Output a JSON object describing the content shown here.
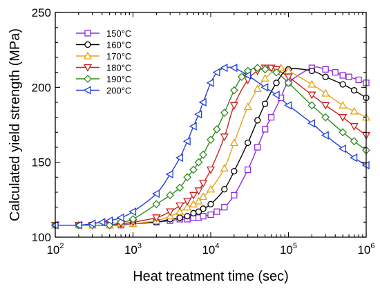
{
  "chart_data": {
    "type": "line",
    "title": "",
    "xlabel": "Heat treatment time (sec)",
    "ylabel": "Calculated yield strength (MPa)",
    "x_scale": "log",
    "xlim": [
      100,
      1000000
    ],
    "ylim": [
      100,
      250
    ],
    "x_ticks": [
      {
        "base": "10",
        "exp": "2",
        "value": 100
      },
      {
        "base": "10",
        "exp": "3",
        "value": 1000
      },
      {
        "base": "10",
        "exp": "4",
        "value": 10000
      },
      {
        "base": "10",
        "exp": "5",
        "value": 100000
      },
      {
        "base": "10",
        "exp": "6",
        "value": 1000000
      }
    ],
    "y_ticks": [
      {
        "label": "100",
        "value": 100
      },
      {
        "label": "150",
        "value": 150
      },
      {
        "label": "200",
        "value": 200
      },
      {
        "label": "250",
        "value": 250
      }
    ],
    "grid": false,
    "legend_position": "top-left",
    "series": [
      {
        "name": "150°C",
        "color": "#8f2be2",
        "marker": "square",
        "x": [
          100,
          200,
          300,
          500,
          700,
          1000,
          2000,
          3000,
          4000,
          5000,
          6000,
          7000,
          8000,
          10000,
          12000,
          15000,
          20000,
          30000,
          40000,
          50000,
          60000,
          80000,
          100000,
          200000,
          300000,
          400000,
          500000,
          600000,
          800000,
          1000000
        ],
        "y": [
          108,
          108,
          108,
          108,
          108,
          109,
          110,
          111,
          112,
          112,
          113,
          113,
          114,
          115,
          117,
          120,
          128,
          145,
          160,
          172,
          180,
          193,
          203,
          213,
          212,
          210,
          208,
          207,
          205,
          203
        ]
      },
      {
        "name": "160°C",
        "color": "#000000",
        "marker": "circle",
        "x": [
          100,
          200,
          300,
          500,
          700,
          1000,
          2000,
          3000,
          4000,
          5000,
          6000,
          7000,
          8000,
          10000,
          15000,
          20000,
          30000,
          40000,
          50000,
          70000,
          100000,
          200000,
          300000,
          500000,
          700000,
          1000000
        ],
        "y": [
          108,
          108,
          108,
          108,
          109,
          109,
          110,
          112,
          113,
          114,
          116,
          117,
          119,
          122,
          132,
          144,
          163,
          178,
          189,
          203,
          212,
          211,
          207,
          202,
          198,
          193
        ]
      },
      {
        "name": "170°C",
        "color": "#e3a317",
        "marker": "triangle-up",
        "x": [
          100,
          200,
          300,
          500,
          700,
          1000,
          2000,
          3000,
          4000,
          5000,
          6000,
          7000,
          8000,
          10000,
          15000,
          20000,
          30000,
          40000,
          50000,
          70000,
          80000,
          100000,
          200000,
          300000,
          500000,
          700000,
          1000000
        ],
        "y": [
          108,
          108,
          108,
          108,
          109,
          109,
          111,
          114,
          117,
          120,
          122,
          124,
          127,
          132,
          146,
          163,
          187,
          199,
          206,
          212,
          213,
          211,
          202,
          196,
          188,
          184,
          180
        ]
      },
      {
        "name": "180°C",
        "color": "#cc1f1f",
        "marker": "triangle-down",
        "x": [
          100,
          200,
          300,
          500,
          700,
          1000,
          2000,
          3000,
          4000,
          5000,
          6000,
          7000,
          8000,
          10000,
          15000,
          20000,
          30000,
          40000,
          50000,
          60000,
          70000,
          100000,
          200000,
          300000,
          500000,
          700000,
          1000000
        ],
        "y": [
          108,
          108,
          108,
          108,
          109,
          110,
          113,
          117,
          121,
          124,
          128,
          131,
          136,
          145,
          167,
          188,
          205,
          211,
          213,
          213,
          212,
          207,
          195,
          188,
          180,
          174,
          168
        ]
      },
      {
        "name": "190°C",
        "color": "#2e8b1e",
        "marker": "diamond",
        "x": [
          100,
          200,
          300,
          500,
          700,
          1000,
          2000,
          3000,
          4000,
          5000,
          6000,
          7000,
          8000,
          10000,
          12000,
          15000,
          20000,
          25000,
          30000,
          40000,
          50000,
          70000,
          100000,
          200000,
          300000,
          500000,
          700000,
          1000000
        ],
        "y": [
          108,
          108,
          108,
          108,
          110,
          112,
          122,
          128,
          133,
          140,
          145,
          150,
          155,
          165,
          172,
          183,
          198,
          207,
          211,
          213,
          212,
          210,
          203,
          188,
          180,
          170,
          164,
          158
        ]
      },
      {
        "name": "200°C",
        "color": "#1f3fd9",
        "marker": "triangle-left",
        "x": [
          100,
          200,
          300,
          400,
          500,
          700,
          1000,
          2000,
          3000,
          4000,
          5000,
          6000,
          7000,
          8000,
          10000,
          12000,
          15000,
          20000,
          30000,
          50000,
          70000,
          100000,
          200000,
          300000,
          500000,
          700000,
          1000000
        ],
        "y": [
          108,
          108,
          109,
          110,
          111,
          113,
          117,
          129,
          142,
          153,
          164,
          174,
          182,
          190,
          203,
          210,
          213,
          213,
          208,
          200,
          195,
          188,
          176,
          168,
          159,
          153,
          148
        ]
      }
    ]
  }
}
